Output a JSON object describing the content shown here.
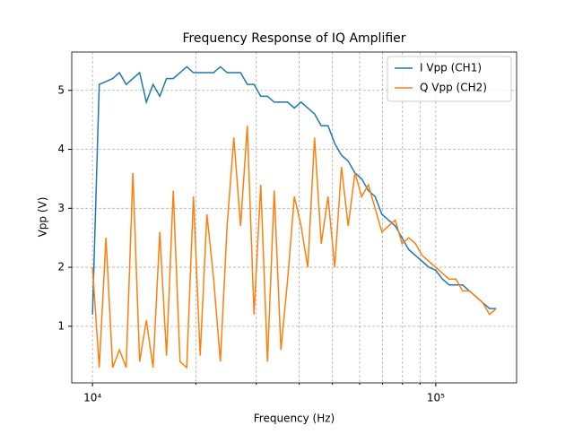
{
  "chart_data": {
    "type": "line",
    "title": "Frequency Response of IQ Amplifier",
    "x_label": "Frequency (Hz)",
    "y_label": "Vpp (V)",
    "x": [
      10000,
      10462,
      10945,
      11450,
      11979,
      12532,
      13111,
      13716,
      14350,
      15012,
      15706,
      16431,
      17190,
      17984,
      18814,
      19683,
      20592,
      21543,
      22538,
      23579,
      24668,
      25807,
      26999,
      28246,
      29550,
      30915,
      32343,
      33836,
      35399,
      37034,
      38730,
      40518,
      42389,
      44347,
      46395,
      48537,
      50779,
      53124,
      55577,
      58144,
      60829,
      63638,
      66577,
      69652,
      72868,
      76233,
      79754,
      83437,
      87290,
      91321,
      95539,
      99951,
      104567,
      109396,
      114448,
      119733,
      125263,
      131047,
      137099,
      143431,
      150000
    ],
    "series": [
      {
        "name": "I Vpp (CH1)",
        "color": "#1f77b4",
        "values": [
          1.2,
          5.1,
          5.15,
          5.2,
          5.3,
          5.1,
          5.2,
          5.3,
          4.8,
          5.1,
          4.9,
          5.2,
          5.2,
          5.3,
          5.4,
          5.3,
          5.3,
          5.3,
          5.3,
          5.4,
          5.3,
          5.3,
          5.3,
          5.1,
          5.1,
          4.9,
          4.9,
          4.8,
          4.8,
          4.8,
          4.7,
          4.8,
          4.7,
          4.6,
          4.4,
          4.4,
          4.1,
          3.9,
          3.8,
          3.6,
          3.5,
          3.3,
          3.2,
          2.9,
          2.8,
          2.7,
          2.5,
          2.3,
          2.2,
          2.1,
          2.0,
          1.95,
          1.8,
          1.7,
          1.7,
          1.7,
          1.6,
          1.5,
          1.4,
          1.3,
          1.3
        ]
      },
      {
        "name": "Q Vpp (CH2)",
        "color": "#ff7f0e",
        "values": [
          2.0,
          0.3,
          2.5,
          0.3,
          0.6,
          0.3,
          3.6,
          0.4,
          1.1,
          0.3,
          2.6,
          0.5,
          3.3,
          0.4,
          0.3,
          3.2,
          0.5,
          2.9,
          1.8,
          0.4,
          2.7,
          4.2,
          2.7,
          4.4,
          1.2,
          3.4,
          0.4,
          3.3,
          0.6,
          1.8,
          3.2,
          2.7,
          2.0,
          4.2,
          2.4,
          3.2,
          2.0,
          3.7,
          2.7,
          3.6,
          3.2,
          3.4,
          3.0,
          2.6,
          2.7,
          2.8,
          2.4,
          2.5,
          2.4,
          2.2,
          2.1,
          2.0,
          1.9,
          1.8,
          1.8,
          1.6,
          1.6,
          1.5,
          1.4,
          1.2,
          1.3
        ]
      }
    ],
    "xscale": "log",
    "xlim": [
      8700,
      172000
    ],
    "xticks": [
      {
        "value": 10000,
        "label": "10⁴"
      },
      {
        "value": 100000,
        "label": "10⁵"
      }
    ],
    "xminorticks": [
      20000,
      30000,
      40000,
      50000,
      60000,
      70000,
      80000,
      90000
    ],
    "ylim": [
      0.04,
      5.65
    ],
    "yticks": [
      1,
      2,
      3,
      4,
      5
    ],
    "grid": true,
    "legend": "upper right"
  }
}
